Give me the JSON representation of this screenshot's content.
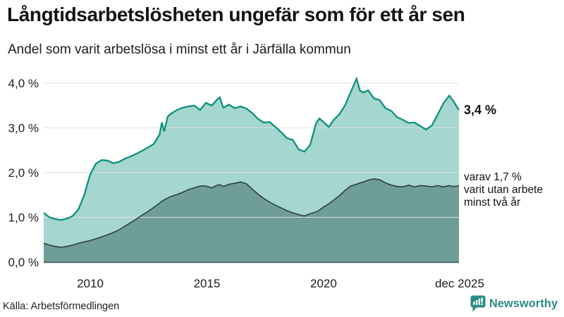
{
  "header": {
    "title": "Långtidsarbetslösheten ungefär som för ett år sen",
    "subtitle": "Andel som varit arbetslösa i minst ett år i Järfälla kommun"
  },
  "chart_data": {
    "type": "area",
    "title": "Långtidsarbetslösheten ungefär som för ett år sen",
    "subtitle": "Andel som varit arbetslösa i minst ett år i Järfälla kommun",
    "xlabel": "",
    "ylabel": "",
    "xlim": [
      2008.0,
      2025.92
    ],
    "ylim": [
      0,
      4.2
    ],
    "grid": true,
    "x_unit": "decimal_year_monthly_series",
    "x": [
      2008.0,
      2008.25,
      2008.5,
      2008.75,
      2009.0,
      2009.25,
      2009.5,
      2009.75,
      2010.0,
      2010.25,
      2010.5,
      2010.75,
      2011.0,
      2011.25,
      2011.5,
      2011.75,
      2012.0,
      2012.25,
      2012.5,
      2012.75,
      2013.0,
      2013.1,
      2013.2,
      2013.35,
      2013.5,
      2013.75,
      2014.0,
      2014.25,
      2014.5,
      2014.75,
      2015.0,
      2015.25,
      2015.5,
      2015.6,
      2015.75,
      2016.0,
      2016.25,
      2016.5,
      2016.75,
      2017.0,
      2017.25,
      2017.5,
      2017.75,
      2018.0,
      2018.25,
      2018.5,
      2018.75,
      2019.0,
      2019.25,
      2019.5,
      2019.75,
      2019.9,
      2020.1,
      2020.3,
      2020.5,
      2020.75,
      2021.0,
      2021.25,
      2021.5,
      2021.65,
      2021.8,
      2022.0,
      2022.25,
      2022.5,
      2022.75,
      2023.0,
      2023.25,
      2023.5,
      2023.75,
      2024.0,
      2024.25,
      2024.5,
      2024.75,
      2025.0,
      2025.25,
      2025.5,
      2025.65,
      2025.92
    ],
    "series": [
      {
        "name": "Andel arbetslösa minst ett år",
        "line_color": "#0d9081",
        "fill_color": "#a5d6cf",
        "end_value_label": "3,4 %",
        "values": [
          1.1,
          1.0,
          0.96,
          0.94,
          0.97,
          1.03,
          1.18,
          1.5,
          1.95,
          2.2,
          2.28,
          2.27,
          2.21,
          2.24,
          2.31,
          2.36,
          2.42,
          2.49,
          2.56,
          2.64,
          2.85,
          3.12,
          2.92,
          3.25,
          3.32,
          3.4,
          3.45,
          3.48,
          3.5,
          3.4,
          3.56,
          3.5,
          3.64,
          3.68,
          3.45,
          3.52,
          3.44,
          3.48,
          3.43,
          3.33,
          3.2,
          3.12,
          3.13,
          3.02,
          2.9,
          2.77,
          2.73,
          2.52,
          2.47,
          2.62,
          3.1,
          3.21,
          3.12,
          3.02,
          3.17,
          3.3,
          3.5,
          3.8,
          4.1,
          3.83,
          3.79,
          3.84,
          3.66,
          3.62,
          3.44,
          3.38,
          3.24,
          3.18,
          3.11,
          3.12,
          3.04,
          2.96,
          3.05,
          3.3,
          3.55,
          3.72,
          3.62,
          3.4
        ]
      },
      {
        "name": "Varav utan arbete minst två år",
        "line_color": "#2f3e3c",
        "fill_color": "#6f9e98",
        "end_value_label": "1,7 %",
        "values": [
          0.42,
          0.38,
          0.35,
          0.33,
          0.35,
          0.38,
          0.42,
          0.45,
          0.48,
          0.52,
          0.56,
          0.61,
          0.66,
          0.72,
          0.8,
          0.88,
          0.96,
          1.05,
          1.13,
          1.22,
          1.32,
          1.36,
          1.39,
          1.43,
          1.47,
          1.51,
          1.56,
          1.62,
          1.66,
          1.7,
          1.7,
          1.66,
          1.72,
          1.73,
          1.69,
          1.74,
          1.76,
          1.79,
          1.75,
          1.63,
          1.52,
          1.42,
          1.34,
          1.27,
          1.21,
          1.15,
          1.1,
          1.06,
          1.03,
          1.08,
          1.12,
          1.16,
          1.24,
          1.3,
          1.38,
          1.48,
          1.6,
          1.7,
          1.74,
          1.77,
          1.79,
          1.83,
          1.86,
          1.84,
          1.77,
          1.72,
          1.69,
          1.68,
          1.72,
          1.68,
          1.71,
          1.7,
          1.68,
          1.71,
          1.68,
          1.71,
          1.69,
          1.7
        ]
      }
    ],
    "ytick_values": [
      0,
      1,
      2,
      3,
      4
    ],
    "ytick_labels": [
      "0,0 %",
      "1,0 %",
      "2,0 %",
      "3,0 %",
      "4,0 %"
    ],
    "xtick_values": [
      2010,
      2015,
      2020,
      2025.92
    ],
    "xtick_labels": [
      "2010",
      "2015",
      "2020",
      "dec 2025"
    ],
    "legend_position": "none",
    "end_label_primary": "3,4 %",
    "annotation": {
      "line1": "varav 1,7 %",
      "line2": "varit utan arbete",
      "line3": "minst två år"
    }
  },
  "footer": {
    "source": "Källa: Arbetsförmedlingen",
    "brand": "Newsworthy"
  },
  "colors": {
    "line_primary": "#0d9081",
    "fill_primary": "#a5d6cf",
    "line_secondary": "#2f3e3c",
    "fill_secondary": "#6f9e98",
    "gridline": "#e0e0e0",
    "baseline": "#456560",
    "brand_teal": "#2d8c85",
    "text_dark": "#141414"
  }
}
